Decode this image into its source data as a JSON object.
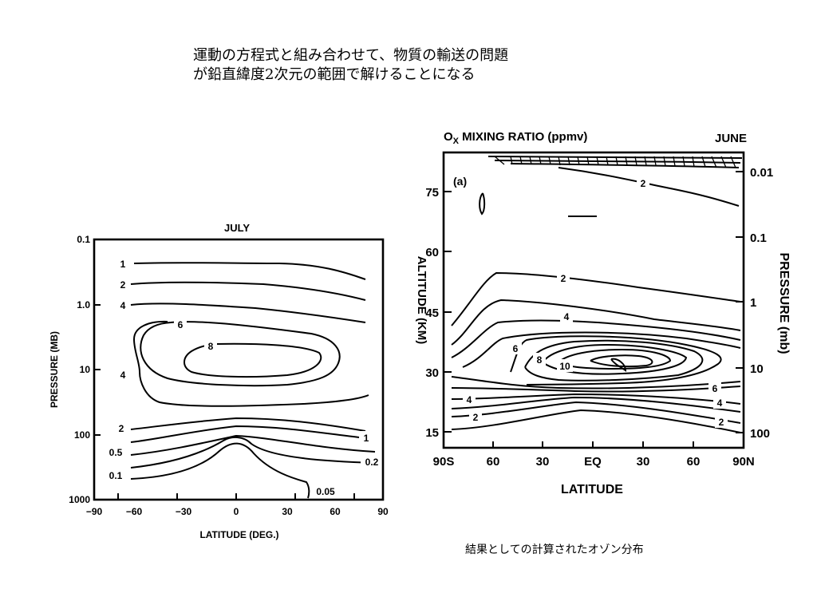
{
  "slide": {
    "title_line1": "運動の方程式と組み合わせて、物質の輸送の問題",
    "title_line2": "が鉛直緯度2次元の範囲で解けることになる",
    "caption": "結果としての計算されたオゾン分布"
  },
  "chart_data": [
    {
      "type": "contour",
      "title": "JULY",
      "xlabel": "LATITUDE (DEG.)",
      "ylabel": "PRESSURE (MB)",
      "x_ticks": [
        "−90",
        "−60",
        "−30",
        "0",
        "30",
        "60",
        "90"
      ],
      "y_ticks": [
        "0.1",
        "1.0",
        "10",
        "100",
        "1000"
      ],
      "xlim": [
        -90,
        90
      ],
      "ylim": [
        1000,
        0.1
      ],
      "y_scale": "log",
      "contour_labels": [
        "1",
        "2",
        "4",
        "6",
        "8",
        "4",
        "2",
        "1",
        "0.5",
        "0.2",
        "0.1",
        "0.05"
      ]
    },
    {
      "type": "contour",
      "title": "O",
      "title_sub": "X",
      "title_rest": " MIXING RATIO (ppmv)",
      "month": "JUNE",
      "panel": "(a)",
      "xlabel": "LATITUDE",
      "ylabel_left": "ALTITUDE (KM)",
      "ylabel_right": "PRESSURE  (mb)",
      "x_ticks": [
        "90S",
        "60",
        "30",
        "EQ",
        "30",
        "60",
        "90N"
      ],
      "y_ticks_left": [
        "75",
        "60",
        "45",
        "30",
        "15"
      ],
      "y_ticks_right": [
        "0.01",
        "0.1",
        "1",
        "10",
        "100"
      ],
      "contour_labels": [
        "2",
        "2",
        "4",
        "6",
        "8",
        "10",
        "6",
        "4",
        "4",
        "2",
        "2"
      ]
    }
  ]
}
